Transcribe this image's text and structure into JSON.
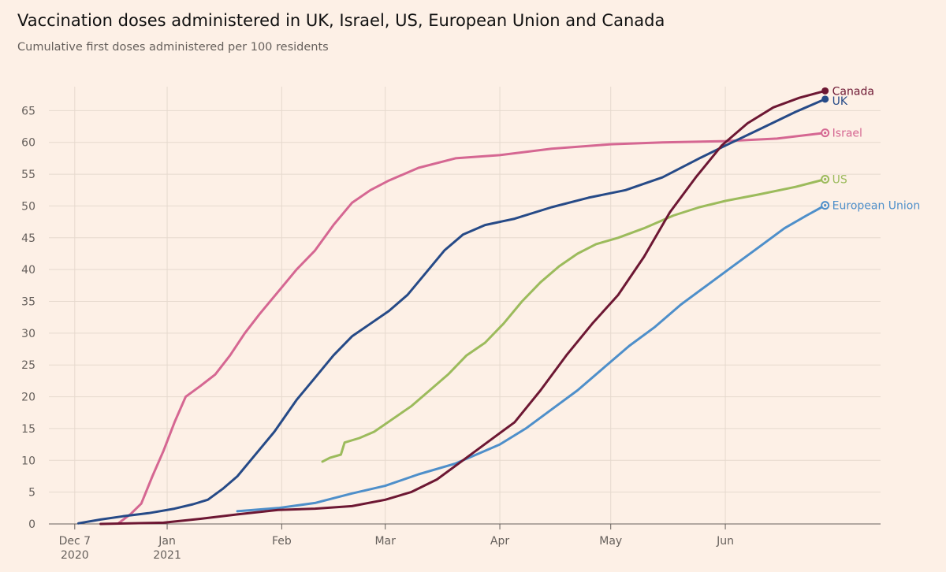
{
  "title": "Vaccination doses administered in UK, Israel, US, European Union and Canada",
  "subtitle": "Cumulative first doses administered per 100 residents",
  "chart_data": {
    "type": "line",
    "title": "Vaccination doses administered in UK, Israel, US, European Union and Canada",
    "subtitle": "Cumulative first doses administered per 100 residents",
    "xlabel": "",
    "ylabel": "",
    "ylim": [
      0,
      70
    ],
    "xlim": [
      "2020-11-30",
      "2021-07-13"
    ],
    "yticks": [
      0,
      5,
      10,
      15,
      20,
      25,
      30,
      35,
      40,
      45,
      50,
      55,
      60,
      65
    ],
    "xticks": [
      {
        "date": "2020-12-07",
        "label": "Dec 7",
        "label2": "2020"
      },
      {
        "date": "2021-01-01",
        "label": "Jan",
        "label2": "2021"
      },
      {
        "date": "2021-02-01",
        "label": "Feb",
        "label2": ""
      },
      {
        "date": "2021-03-01",
        "label": "Mar",
        "label2": ""
      },
      {
        "date": "2021-04-01",
        "label": "Apr",
        "label2": ""
      },
      {
        "date": "2021-05-01",
        "label": "May",
        "label2": ""
      },
      {
        "date": "2021-06-01",
        "label": "Jun",
        "label2": ""
      }
    ],
    "grid": true,
    "legend": "end-of-line labels",
    "series": [
      {
        "name": "Israel",
        "color": "#d56792",
        "end_marker": "ring",
        "points": [
          [
            "2020-12-19",
            0.2
          ],
          [
            "2020-12-22",
            1.5
          ],
          [
            "2020-12-25",
            3.2
          ],
          [
            "2020-12-28",
            7.5
          ],
          [
            "2020-12-31",
            11.5
          ],
          [
            "2021-01-03",
            16
          ],
          [
            "2021-01-06",
            20
          ],
          [
            "2021-01-10",
            21.7
          ],
          [
            "2021-01-14",
            23.5
          ],
          [
            "2021-01-18",
            26.5
          ],
          [
            "2021-01-22",
            30
          ],
          [
            "2021-01-26",
            33
          ],
          [
            "2021-01-31",
            36.5
          ],
          [
            "2021-02-05",
            40
          ],
          [
            "2021-02-10",
            43
          ],
          [
            "2021-02-15",
            47
          ],
          [
            "2021-02-20",
            50.5
          ],
          [
            "2021-02-25",
            52.5
          ],
          [
            "2021-03-02",
            54
          ],
          [
            "2021-03-10",
            56
          ],
          [
            "2021-03-20",
            57.5
          ],
          [
            "2021-04-01",
            58
          ],
          [
            "2021-04-15",
            59
          ],
          [
            "2021-05-01",
            59.7
          ],
          [
            "2021-05-15",
            60
          ],
          [
            "2021-06-01",
            60.2
          ],
          [
            "2021-06-15",
            60.6
          ],
          [
            "2021-06-28",
            61.5
          ]
        ]
      },
      {
        "name": "UK",
        "color": "#264a87",
        "end_marker": "dot",
        "points": [
          [
            "2020-12-08",
            0.1
          ],
          [
            "2020-12-14",
            0.7
          ],
          [
            "2020-12-20",
            1.2
          ],
          [
            "2020-12-27",
            1.7
          ],
          [
            "2021-01-03",
            2.4
          ],
          [
            "2021-01-08",
            3.1
          ],
          [
            "2021-01-12",
            3.8
          ],
          [
            "2021-01-16",
            5.5
          ],
          [
            "2021-01-20",
            7.5
          ],
          [
            "2021-01-25",
            11
          ],
          [
            "2021-01-30",
            14.5
          ],
          [
            "2021-02-05",
            19.5
          ],
          [
            "2021-02-10",
            23
          ],
          [
            "2021-02-15",
            26.5
          ],
          [
            "2021-02-20",
            29.5
          ],
          [
            "2021-02-25",
            31.5
          ],
          [
            "2021-03-02",
            33.5
          ],
          [
            "2021-03-07",
            36
          ],
          [
            "2021-03-12",
            39.5
          ],
          [
            "2021-03-17",
            43
          ],
          [
            "2021-03-22",
            45.5
          ],
          [
            "2021-03-28",
            47
          ],
          [
            "2021-04-05",
            48
          ],
          [
            "2021-04-15",
            49.8
          ],
          [
            "2021-04-25",
            51.3
          ],
          [
            "2021-05-05",
            52.5
          ],
          [
            "2021-05-15",
            54.5
          ],
          [
            "2021-05-25",
            57.5
          ],
          [
            "2021-06-01",
            59.5
          ],
          [
            "2021-06-10",
            62
          ],
          [
            "2021-06-20",
            64.8
          ],
          [
            "2021-06-28",
            66.8
          ]
        ]
      },
      {
        "name": "US",
        "color": "#9cbb5c",
        "end_marker": "ring",
        "points": [
          [
            "2021-02-12",
            9.8
          ],
          [
            "2021-02-14",
            10.4
          ],
          [
            "2021-02-17",
            10.9
          ],
          [
            "2021-02-18",
            12.8
          ],
          [
            "2021-02-22",
            13.5
          ],
          [
            "2021-02-26",
            14.5
          ],
          [
            "2021-03-03",
            16.5
          ],
          [
            "2021-03-08",
            18.5
          ],
          [
            "2021-03-13",
            21
          ],
          [
            "2021-03-18",
            23.5
          ],
          [
            "2021-03-23",
            26.5
          ],
          [
            "2021-03-28",
            28.5
          ],
          [
            "2021-04-02",
            31.5
          ],
          [
            "2021-04-07",
            35
          ],
          [
            "2021-04-12",
            38
          ],
          [
            "2021-04-17",
            40.5
          ],
          [
            "2021-04-22",
            42.5
          ],
          [
            "2021-04-27",
            44
          ],
          [
            "2021-05-03",
            45
          ],
          [
            "2021-05-10",
            46.5
          ],
          [
            "2021-05-18",
            48.5
          ],
          [
            "2021-05-25",
            49.8
          ],
          [
            "2021-06-01",
            50.8
          ],
          [
            "2021-06-10",
            51.8
          ],
          [
            "2021-06-20",
            53
          ],
          [
            "2021-06-28",
            54.2
          ]
        ]
      },
      {
        "name": "European Union",
        "color": "#4e8fca",
        "end_marker": "ring",
        "points": [
          [
            "2021-01-20",
            2
          ],
          [
            "2021-01-31",
            2.5
          ],
          [
            "2021-02-10",
            3.3
          ],
          [
            "2021-02-20",
            4.8
          ],
          [
            "2021-03-01",
            6
          ],
          [
            "2021-03-10",
            7.8
          ],
          [
            "2021-03-20",
            9.5
          ],
          [
            "2021-03-26",
            11
          ],
          [
            "2021-04-01",
            12.5
          ],
          [
            "2021-04-08",
            15
          ],
          [
            "2021-04-15",
            18
          ],
          [
            "2021-04-22",
            21
          ],
          [
            "2021-04-29",
            24.5
          ],
          [
            "2021-05-06",
            28
          ],
          [
            "2021-05-13",
            31
          ],
          [
            "2021-05-20",
            34.5
          ],
          [
            "2021-05-27",
            37.5
          ],
          [
            "2021-06-03",
            40.5
          ],
          [
            "2021-06-10",
            43.5
          ],
          [
            "2021-06-17",
            46.5
          ],
          [
            "2021-06-23",
            48.5
          ],
          [
            "2021-06-28",
            50.1
          ]
        ]
      },
      {
        "name": "Canada",
        "color": "#6d1733",
        "end_marker": "dot",
        "points": [
          [
            "2020-12-14",
            0
          ],
          [
            "2020-12-31",
            0.2
          ],
          [
            "2021-01-10",
            0.8
          ],
          [
            "2021-01-20",
            1.5
          ],
          [
            "2021-01-31",
            2.2
          ],
          [
            "2021-02-10",
            2.4
          ],
          [
            "2021-02-20",
            2.8
          ],
          [
            "2021-03-01",
            3.8
          ],
          [
            "2021-03-08",
            5
          ],
          [
            "2021-03-15",
            7
          ],
          [
            "2021-03-22",
            10
          ],
          [
            "2021-03-29",
            13
          ],
          [
            "2021-04-05",
            16
          ],
          [
            "2021-04-12",
            21
          ],
          [
            "2021-04-19",
            26.5
          ],
          [
            "2021-04-26",
            31.5
          ],
          [
            "2021-05-03",
            36
          ],
          [
            "2021-05-10",
            42
          ],
          [
            "2021-05-17",
            49
          ],
          [
            "2021-05-24",
            54.5
          ],
          [
            "2021-05-31",
            59.5
          ],
          [
            "2021-06-07",
            63
          ],
          [
            "2021-06-14",
            65.5
          ],
          [
            "2021-06-21",
            67
          ],
          [
            "2021-06-28",
            68.1
          ]
        ]
      }
    ]
  }
}
